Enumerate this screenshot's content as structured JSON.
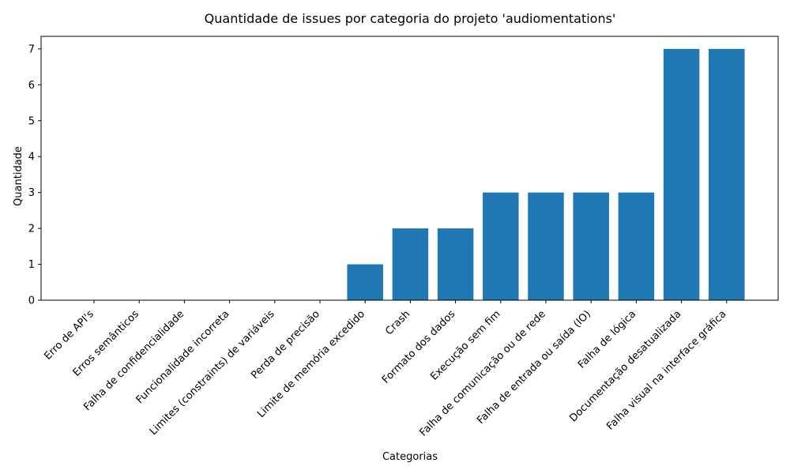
{
  "chart_data": {
    "type": "bar",
    "title": "Quantidade de issues por categoria do projeto 'audiomentations'",
    "xlabel": "Categorias",
    "ylabel": "Quantidade",
    "categories": [
      "Erro de API's",
      "Erros semânticos",
      "Falha de confidencialidade",
      "Funcionalidade incorreta",
      "Limites (constraints) de variáveis",
      "Perda de precisão",
      "Limite de memória excedido",
      "Crash",
      "Formato dos dados",
      "Execução sem fim",
      "Falha de comunicação ou de rede",
      "Falha de entrada ou saída (IO)",
      "Falha de lógica",
      "Documentação desatualizada",
      "Falha visual na interface gráfica"
    ],
    "values": [
      0,
      0,
      0,
      0,
      0,
      0,
      1,
      2,
      2,
      3,
      3,
      3,
      3,
      7,
      7
    ],
    "ylim": [
      0,
      7.35
    ],
    "yticks": [
      0,
      1,
      2,
      3,
      4,
      5,
      6,
      7
    ],
    "bar_color": "#1f77b4",
    "grid": false,
    "legend": "none"
  }
}
